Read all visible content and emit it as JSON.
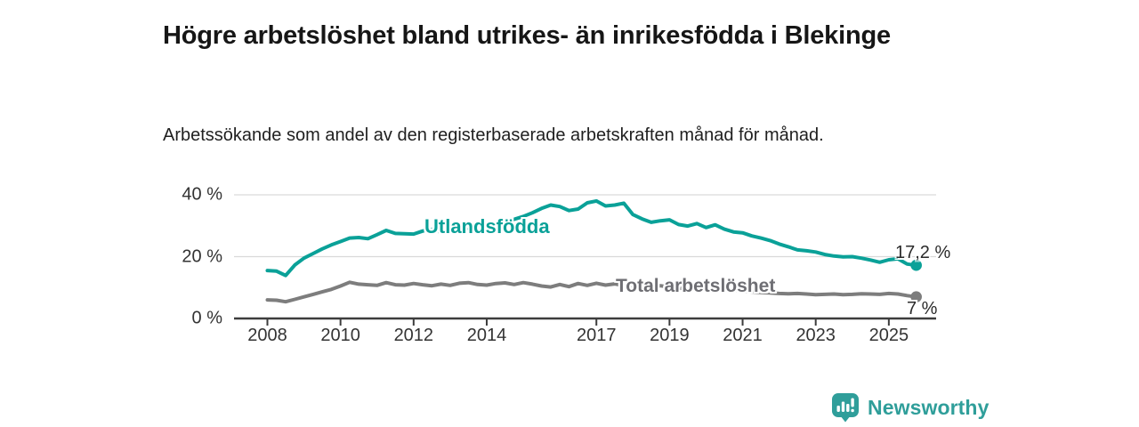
{
  "header": {
    "title": "Högre arbetslöshet bland utrikes- än inrikesfödda i Blekinge",
    "subtitle": "Arbetssökande som andel av den registerbaserade arbetskraften månad för månad."
  },
  "chart_data": {
    "type": "line",
    "title": "Högre arbetslöshet bland utrikes- än inrikesfödda i Blekinge",
    "subtitle": "Arbetssökande som andel av den registerbaserade arbetskraften månad för månad.",
    "xlabel": "",
    "ylabel": "",
    "unit": "%",
    "grid": "horizontal",
    "legend_position": "inline-labels",
    "xlim": [
      2007.1,
      2026.3
    ],
    "ylim": [
      0,
      42
    ],
    "x_ticks": [
      2008,
      2010,
      2012,
      2014,
      2017,
      2019,
      2021,
      2023,
      2025
    ],
    "y_ticks": [
      0,
      20,
      40
    ],
    "y_tick_labels": [
      "0 %",
      "20 %",
      "40 %"
    ],
    "x": [
      2008,
      2008.25,
      2008.5,
      2008.75,
      2009,
      2009.25,
      2009.5,
      2009.75,
      2010,
      2010.25,
      2010.5,
      2010.75,
      2011,
      2011.25,
      2011.5,
      2011.75,
      2012,
      2012.25,
      2012.5,
      2012.75,
      2013,
      2013.25,
      2013.5,
      2013.75,
      2014,
      2014.25,
      2014.5,
      2014.75,
      2015,
      2015.25,
      2015.5,
      2015.75,
      2016,
      2016.25,
      2016.5,
      2016.75,
      2017,
      2017.25,
      2017.5,
      2017.75,
      2018,
      2018.25,
      2018.5,
      2018.75,
      2019,
      2019.25,
      2019.5,
      2019.75,
      2020,
      2020.25,
      2020.5,
      2020.75,
      2021,
      2021.25,
      2021.5,
      2021.75,
      2022,
      2022.25,
      2022.5,
      2022.75,
      2023,
      2023.25,
      2023.5,
      2023.75,
      2024,
      2024.25,
      2024.5,
      2024.75,
      2025,
      2025.25,
      2025.5,
      2025.75
    ],
    "series": [
      {
        "name": "Utlandsfödda",
        "color": "#0aa198",
        "end_label": "17,2 %",
        "end_value": 17.2,
        "values": [
          15.5,
          15.3,
          13.9,
          17.3,
          19.5,
          21,
          22.5,
          23.8,
          24.9,
          26,
          26.2,
          25.8,
          27.1,
          28.5,
          27.5,
          27.4,
          27.3,
          28.3,
          28.8,
          27.9,
          28.1,
          28.7,
          29.3,
          29.6,
          30.1,
          30.7,
          31.3,
          32.1,
          33,
          34.2,
          35.6,
          36.7,
          36.2,
          34.9,
          35.4,
          37.4,
          38,
          36.4,
          36.7,
          37.3,
          33.6,
          32.2,
          31.1,
          31.6,
          31.9,
          30.4,
          29.9,
          30.7,
          29.4,
          30.3,
          28.9,
          28,
          27.7,
          26.7,
          26,
          25.2,
          24.1,
          23.2,
          22.2,
          21.9,
          21.5,
          20.7,
          20.2,
          19.9,
          20,
          19.5,
          18.9,
          18.2,
          19,
          19.3,
          17.6,
          17.2
        ]
      },
      {
        "name": "Total arbetslöshet",
        "color": "#7d7d7d",
        "end_label": "7 %",
        "end_value": 7,
        "values": [
          6,
          5.9,
          5.4,
          6.2,
          7,
          7.8,
          8.6,
          9.4,
          10.5,
          11.7,
          11.1,
          10.9,
          10.7,
          11.6,
          10.9,
          10.8,
          11.3,
          10.9,
          10.6,
          11.1,
          10.7,
          11.4,
          11.6,
          11,
          10.8,
          11.3,
          11.5,
          11,
          11.6,
          11.1,
          10.5,
          10.2,
          11,
          10.3,
          11.3,
          10.7,
          11.4,
          10.8,
          11.2,
          10.6,
          10.3,
          10.9,
          10.4,
          10.6,
          10.2,
          9.8,
          9.6,
          9.4,
          9.6,
          10.1,
          9.6,
          9.1,
          8.8,
          8.6,
          8.4,
          8.3,
          8.1,
          8,
          8.1,
          7.9,
          7.7,
          7.8,
          7.9,
          7.7,
          7.8,
          8,
          7.9,
          7.8,
          8.1,
          7.9,
          7.4,
          7
        ]
      }
    ]
  },
  "footer": {
    "brand": "Newsworthy",
    "brand_color": "#2f9e9a",
    "logo_icon": "bar-chart-speech-bubble-icon"
  }
}
